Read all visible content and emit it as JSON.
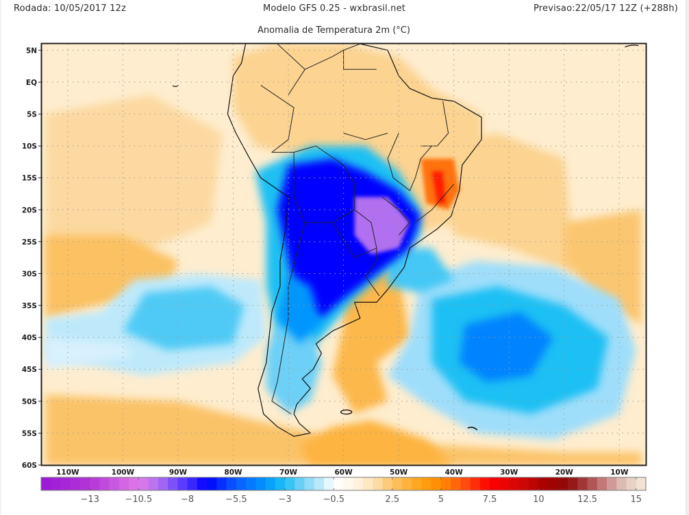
{
  "header": {
    "run": "Rodada: 10/05/2017 12z",
    "model": "Modelo GFS 0.25 - wxbrasil.net",
    "forecast": "Previsao:22/05/17 12Z (+288h)",
    "title": "Anomalia de Temperatura 2m (°C)"
  },
  "map": {
    "variable": "2m temperature anomaly",
    "units": "°C",
    "lon_range": [
      -114.7,
      -5.2
    ],
    "lat_range": [
      -60,
      6
    ],
    "lat_ticks": [
      {
        "value": 5,
        "label": "5N"
      },
      {
        "value": 0,
        "label": "EQ"
      },
      {
        "value": -5,
        "label": "5S"
      },
      {
        "value": -10,
        "label": "10S"
      },
      {
        "value": -15,
        "label": "15S"
      },
      {
        "value": -20,
        "label": "20S"
      },
      {
        "value": -25,
        "label": "25S"
      },
      {
        "value": -30,
        "label": "30S"
      },
      {
        "value": -35,
        "label": "35S"
      },
      {
        "value": -40,
        "label": "40S"
      },
      {
        "value": -45,
        "label": "45S"
      },
      {
        "value": -50,
        "label": "50S"
      },
      {
        "value": -55,
        "label": "55S"
      },
      {
        "value": -60,
        "label": "60S"
      }
    ],
    "lon_ticks": [
      {
        "value": -110,
        "label": "110W"
      },
      {
        "value": -100,
        "label": "100W"
      },
      {
        "value": -90,
        "label": "90W"
      },
      {
        "value": -80,
        "label": "80W"
      },
      {
        "value": -70,
        "label": "70W"
      },
      {
        "value": -60,
        "label": "60W"
      },
      {
        "value": -50,
        "label": "50W"
      },
      {
        "value": -40,
        "label": "40W"
      },
      {
        "value": -30,
        "label": "30W"
      },
      {
        "value": -20,
        "label": "20W"
      },
      {
        "value": -10,
        "label": "10W"
      }
    ],
    "background_anomaly": 1.0,
    "regions": [
      {
        "name": "brazil-interior-cold-core",
        "anomaly": -9.5
      },
      {
        "name": "central-south-america-cold",
        "anomaly": -7
      },
      {
        "name": "argentina-cold",
        "anomaly": -4
      },
      {
        "name": "patagonia-cool",
        "anomaly": -2
      },
      {
        "name": "south-atlantic-cold-pool",
        "anomaly": -4.5
      },
      {
        "name": "southeast-pacific-cool",
        "anomaly": -2.5
      },
      {
        "name": "northeast-brazil-warm",
        "anomaly": 5.5
      },
      {
        "name": "northern-south-america-warm",
        "anomaly": 2
      },
      {
        "name": "south-atlantic-warm-tongue",
        "anomaly": 3
      },
      {
        "name": "southern-ocean-warm",
        "anomaly": 2.5
      }
    ]
  },
  "colorbar": {
    "min": -15.5,
    "max": 15.5,
    "step": 0.5,
    "tick_values": [
      -13,
      -10.5,
      -8,
      -5.5,
      -3,
      -0.5,
      2.5,
      5,
      7.5,
      10,
      12.5,
      15
    ],
    "tick_labels": [
      "−13",
      "−10.5",
      "−8",
      "−5.5",
      "−3",
      "−0.5",
      "2.5",
      "5",
      "7.5",
      "10",
      "12.5",
      "15"
    ],
    "color_stops": [
      {
        "value": -15.5,
        "color": "#9b18d8"
      },
      {
        "value": -13,
        "color": "#b236d8"
      },
      {
        "value": -10.5,
        "color": "#e07ae8"
      },
      {
        "value": -9.5,
        "color": "#b070f0"
      },
      {
        "value": -8,
        "color": "#4a32ff"
      },
      {
        "value": -7,
        "color": "#0000ff"
      },
      {
        "value": -5.5,
        "color": "#0a5cff"
      },
      {
        "value": -4,
        "color": "#0096ff"
      },
      {
        "value": -3,
        "color": "#1ec0f4"
      },
      {
        "value": -2,
        "color": "#80d4f8"
      },
      {
        "value": -1,
        "color": "#cdeefc"
      },
      {
        "value": -0.5,
        "color": "#ffffff"
      },
      {
        "value": 0.5,
        "color": "#fff6e6"
      },
      {
        "value": 1.5,
        "color": "#fde3b8"
      },
      {
        "value": 2.5,
        "color": "#fbc368"
      },
      {
        "value": 4,
        "color": "#ffa314"
      },
      {
        "value": 5,
        "color": "#ff8a00"
      },
      {
        "value": 6,
        "color": "#ff5a10"
      },
      {
        "value": 7.5,
        "color": "#ff0000"
      },
      {
        "value": 9,
        "color": "#d40808"
      },
      {
        "value": 10.5,
        "color": "#a40000"
      },
      {
        "value": 11.5,
        "color": "#8e0a0a"
      },
      {
        "value": 12.5,
        "color": "#a84444"
      },
      {
        "value": 13.5,
        "color": "#cc8a8a"
      },
      {
        "value": 14.5,
        "color": "#e0cbc0"
      },
      {
        "value": 15.5,
        "color": "#f8e9d8"
      }
    ]
  }
}
